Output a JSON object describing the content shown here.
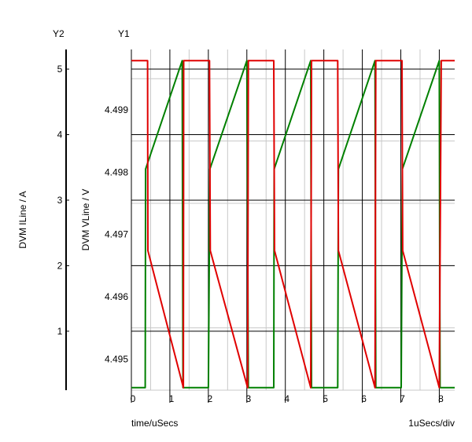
{
  "chart_data": {
    "type": "line",
    "y2_axis": {
      "label": "DVM ILine / A",
      "header": "Y2",
      "ticks": [
        1,
        2,
        3,
        4,
        5
      ],
      "range": [
        0.1,
        5.3
      ]
    },
    "y1_axis": {
      "label": "DVM VLine / V",
      "header": "Y1",
      "ticks": [
        4.495,
        4.496,
        4.497,
        4.498,
        4.499
      ],
      "range": [
        4.4945,
        4.49997
      ]
    },
    "x_axis": {
      "label": "time/uSecs",
      "scale_note": "1uSecs/div",
      "ticks": [
        0,
        1,
        2,
        3,
        4,
        5,
        6,
        7,
        8
      ],
      "range": [
        0,
        8.4
      ]
    },
    "grid": true,
    "series": [
      {
        "color": "#008000",
        "axis": "y1",
        "points": [
          [
            0,
            4.49454
          ],
          [
            0.36,
            4.49454
          ],
          [
            0.37,
            4.49805
          ],
          [
            1.32,
            4.49979
          ],
          [
            1.34,
            4.49454
          ],
          [
            2.0,
            4.49454
          ],
          [
            2.04,
            4.49805
          ],
          [
            3.0,
            4.49979
          ],
          [
            3.04,
            4.49454
          ],
          [
            3.7,
            4.49454
          ],
          [
            3.71,
            4.49805
          ],
          [
            4.66,
            4.49979
          ],
          [
            4.68,
            4.49454
          ],
          [
            5.36,
            4.49454
          ],
          [
            5.38,
            4.49805
          ],
          [
            6.33,
            4.49979
          ],
          [
            6.35,
            4.49454
          ],
          [
            7.01,
            4.49454
          ],
          [
            7.04,
            4.49805
          ],
          [
            8.0,
            4.49979
          ],
          [
            8.02,
            4.49454
          ],
          [
            8.4,
            4.49454
          ]
        ]
      },
      {
        "color": "#e00000",
        "axis": "y1",
        "points": [
          [
            0,
            4.49979
          ],
          [
            0.42,
            4.49979
          ],
          [
            0.43,
            4.49674
          ],
          [
            1.35,
            4.49454
          ],
          [
            1.36,
            4.49979
          ],
          [
            2.03,
            4.49979
          ],
          [
            2.05,
            4.49674
          ],
          [
            3.02,
            4.49454
          ],
          [
            3.04,
            4.49979
          ],
          [
            3.7,
            4.49979
          ],
          [
            3.72,
            4.49674
          ],
          [
            4.66,
            4.49454
          ],
          [
            4.68,
            4.49979
          ],
          [
            5.36,
            4.49979
          ],
          [
            5.38,
            4.49674
          ],
          [
            6.33,
            4.49454
          ],
          [
            6.35,
            4.49979
          ],
          [
            7.03,
            4.49979
          ],
          [
            7.05,
            4.49674
          ],
          [
            8.0,
            4.49454
          ],
          [
            8.05,
            4.49979
          ],
          [
            8.4,
            4.49979
          ]
        ]
      }
    ]
  }
}
